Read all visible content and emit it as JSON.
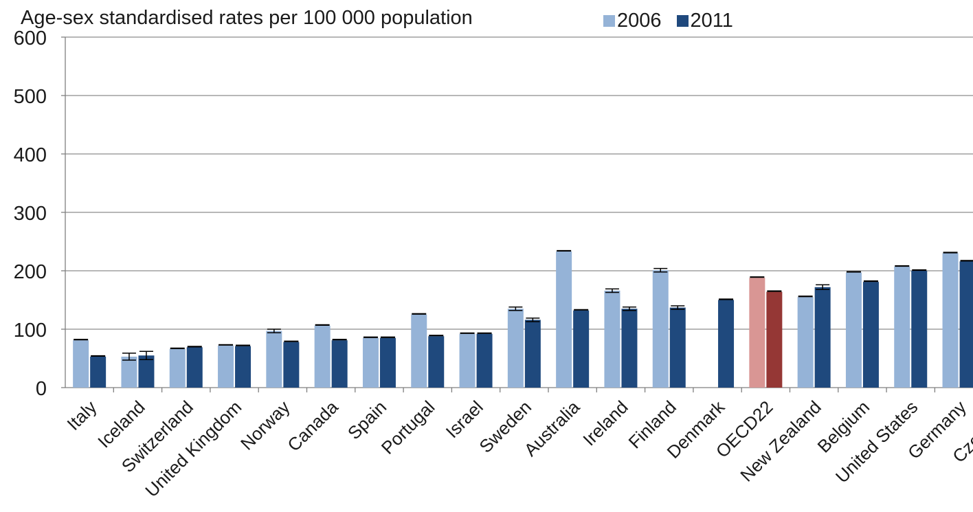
{
  "chart_data": {
    "type": "bar",
    "ylabel": "Age-sex standardised rates per 100 000 population",
    "ylim": [
      0,
      600
    ],
    "yticks": [
      0,
      100,
      200,
      300,
      400,
      500,
      600
    ],
    "grid": true,
    "legend_position": "top",
    "categories": [
      "Italy",
      "Iceland",
      "Switzerland",
      "United Kingdom",
      "Norway",
      "Canada",
      "Spain",
      "Portugal",
      "Israel",
      "Sweden",
      "Australia",
      "Ireland",
      "Finland",
      "Denmark",
      "OECD22",
      "New Zealand",
      "Belgium",
      "United States",
      "Germany",
      "Czech Re"
    ],
    "series": [
      {
        "name": "2006",
        "color": "#95b3d7",
        "values": [
          81,
          53,
          66,
          72,
          97,
          106,
          85,
          125,
          92,
          135,
          233,
          166,
          201,
          null,
          188,
          155,
          197,
          207,
          230,
          null
        ],
        "errors": [
          0,
          6,
          0,
          0,
          3,
          0,
          0,
          0,
          0,
          3,
          0,
          3,
          3,
          0,
          0,
          0,
          0,
          0,
          0,
          0
        ]
      },
      {
        "name": "2011",
        "color": "#1f497d",
        "values": [
          53,
          55,
          69,
          71,
          78,
          81,
          85,
          88,
          92,
          116,
          132,
          135,
          137,
          150,
          164,
          172,
          181,
          200,
          216,
          null
        ],
        "errors": [
          0,
          7,
          0,
          0,
          0,
          0,
          0,
          0,
          0,
          3,
          0,
          3,
          3,
          0,
          0,
          4,
          0,
          0,
          0,
          0
        ]
      }
    ],
    "highlight": {
      "category": "OECD22",
      "colors": [
        "#d99694",
        "#953735"
      ]
    }
  }
}
